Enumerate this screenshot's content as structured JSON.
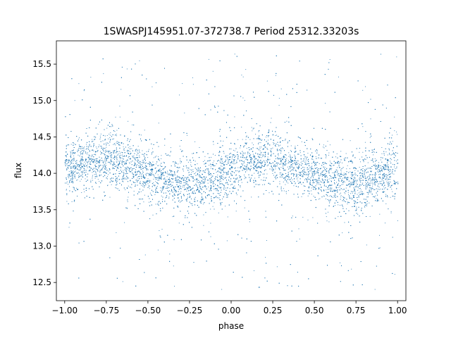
{
  "chart_data": {
    "type": "scatter",
    "title": "1SWASPJ145951.07-372738.7 Period 25312.33203s",
    "xlabel": "phase",
    "ylabel": "flux",
    "xlim": [
      -1.05,
      1.05
    ],
    "ylim": [
      12.25,
      15.82
    ],
    "x_ticks": [
      -1.0,
      -0.75,
      -0.5,
      -0.25,
      0.0,
      0.25,
      0.5,
      0.75,
      1.0
    ],
    "x_tick_labels": [
      "−1.00",
      "−0.75",
      "−0.50",
      "−0.25",
      "0.00",
      "0.25",
      "0.50",
      "0.75",
      "1.00"
    ],
    "y_ticks": [
      12.5,
      13.0,
      13.5,
      14.0,
      14.5,
      15.0,
      15.5
    ],
    "y_tick_labels": [
      "12.5",
      "13.0",
      "13.5",
      "14.0",
      "14.5",
      "15.0",
      "15.5"
    ],
    "grid": false,
    "legend": "none",
    "marker_color": "#1f77b4",
    "series": [
      {
        "x": [
          -1.0,
          -0.9,
          -0.8,
          -0.75,
          -0.7,
          -0.6,
          -0.5,
          -0.4,
          -0.3,
          -0.25,
          -0.2,
          -0.1,
          0.0,
          0.1,
          0.2,
          0.25,
          0.3,
          0.4,
          0.5,
          0.6,
          0.7,
          0.75,
          0.8,
          0.9,
          1.0
        ],
        "y": [
          14.02,
          14.15,
          14.2,
          14.22,
          14.18,
          14.1,
          13.98,
          13.9,
          13.86,
          13.85,
          13.87,
          13.95,
          14.05,
          14.16,
          14.2,
          14.22,
          14.18,
          14.1,
          13.98,
          13.9,
          13.86,
          13.85,
          13.88,
          13.96,
          14.04
        ],
        "scatter_core_sd": 0.18,
        "outlier_range": [
          12.4,
          15.65
        ]
      }
    ]
  }
}
